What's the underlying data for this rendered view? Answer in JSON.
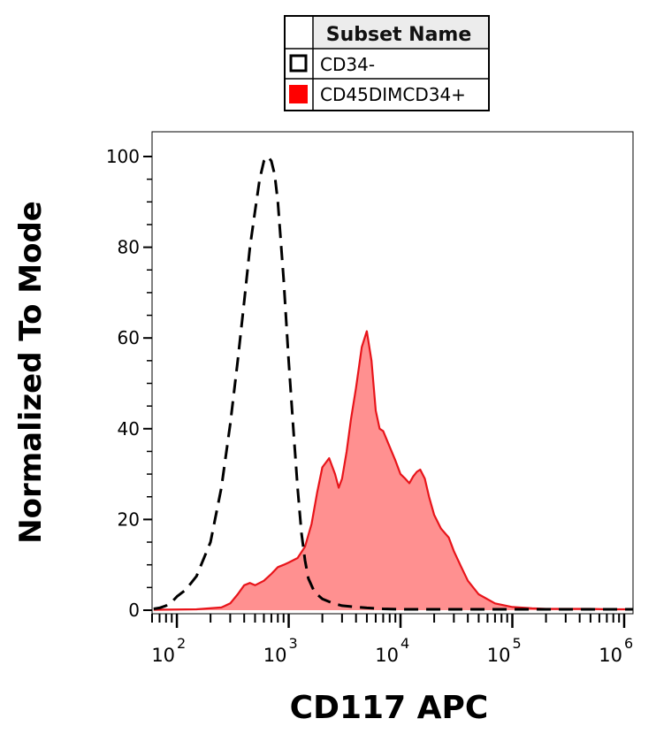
{
  "chart_data": {
    "type": "area",
    "xlabel": "CD117 APC",
    "ylabel": "Normalized To Mode",
    "x_scale": "log",
    "xlim": [
      60,
      1200000
    ],
    "ylim": [
      0,
      105
    ],
    "y_ticks": [
      0,
      20,
      40,
      60,
      80,
      100
    ],
    "y_tick_labels": [
      "0",
      "20",
      "40",
      "60",
      "80",
      "100"
    ],
    "x_major_ticks": [
      100,
      1000,
      10000,
      100000,
      1000000
    ],
    "x_tick_labels": [
      {
        "base": "10",
        "exp": "2"
      },
      {
        "base": "10",
        "exp": "3"
      },
      {
        "base": "10",
        "exp": "4"
      },
      {
        "base": "10",
        "exp": "5"
      },
      {
        "base": "10",
        "exp": "6"
      }
    ],
    "grid": false,
    "legend": {
      "header": "Subset Name",
      "placement": "top-center",
      "entries": [
        {
          "label": "CD34-",
          "series_index": 0
        },
        {
          "label": "CD45DIMCD34+",
          "series_index": 1
        }
      ]
    },
    "series": [
      {
        "name": "CD34-",
        "style": "dashed",
        "stroke": "#000000",
        "fill": "none",
        "x": [
          62,
          70,
          80,
          90,
          100,
          120,
          150,
          200,
          250,
          300,
          350,
          400,
          450,
          500,
          550,
          600,
          650,
          700,
          750,
          800,
          900,
          1000,
          1100,
          1200,
          1300,
          1400,
          1500,
          1700,
          2000,
          2500,
          3000,
          4000,
          5000,
          7000,
          10000,
          20000,
          50000,
          100000,
          200000,
          500000,
          1000000,
          1200000
        ],
        "values": [
          0.3,
          0.5,
          1.0,
          1.8,
          3.0,
          4.5,
          7.5,
          15,
          27,
          41,
          55,
          68,
          80,
          88,
          95,
          99,
          100,
          99,
          96,
          90,
          73,
          55,
          40,
          27,
          17,
          11,
          7,
          4,
          2.5,
          1.5,
          1.0,
          0.7,
          0.5,
          0.3,
          0.2,
          0.2,
          0.2,
          0.2,
          0.2,
          0.2,
          0.2,
          0.2
        ]
      },
      {
        "name": "CD45DIMCD34+",
        "style": "solid",
        "stroke": "#e8141a",
        "fill": "#ff9090",
        "x": [
          62,
          150,
          250,
          300,
          350,
          400,
          450,
          500,
          600,
          700,
          800,
          900,
          1000,
          1200,
          1400,
          1600,
          1800,
          2000,
          2300,
          2600,
          2800,
          3000,
          3300,
          3600,
          4000,
          4500,
          5000,
          5500,
          6000,
          6500,
          7000,
          8000,
          9000,
          10000,
          11000,
          12000,
          13000,
          14000,
          15000,
          16500,
          18000,
          20000,
          23000,
          27000,
          30000,
          35000,
          40000,
          50000,
          70000,
          100000,
          150000,
          200000,
          300000,
          500000,
          700000,
          1000000,
          1200000
        ],
        "values": [
          0.1,
          0.2,
          0.6,
          1.5,
          3.5,
          5.5,
          6,
          5.5,
          6.5,
          8,
          9.5,
          10,
          10.5,
          11.5,
          14,
          19,
          26,
          31.5,
          33.5,
          30,
          27,
          29,
          35,
          42,
          49,
          58,
          61.5,
          55,
          44,
          40,
          39.5,
          36,
          33,
          30,
          29,
          28,
          29.5,
          30.5,
          31,
          29,
          25,
          21,
          18,
          16,
          13,
          9.5,
          6.5,
          3.5,
          1.5,
          0.7,
          0.4,
          0.3,
          0.3,
          0.3,
          0.2,
          0.2,
          0.2
        ]
      }
    ]
  }
}
